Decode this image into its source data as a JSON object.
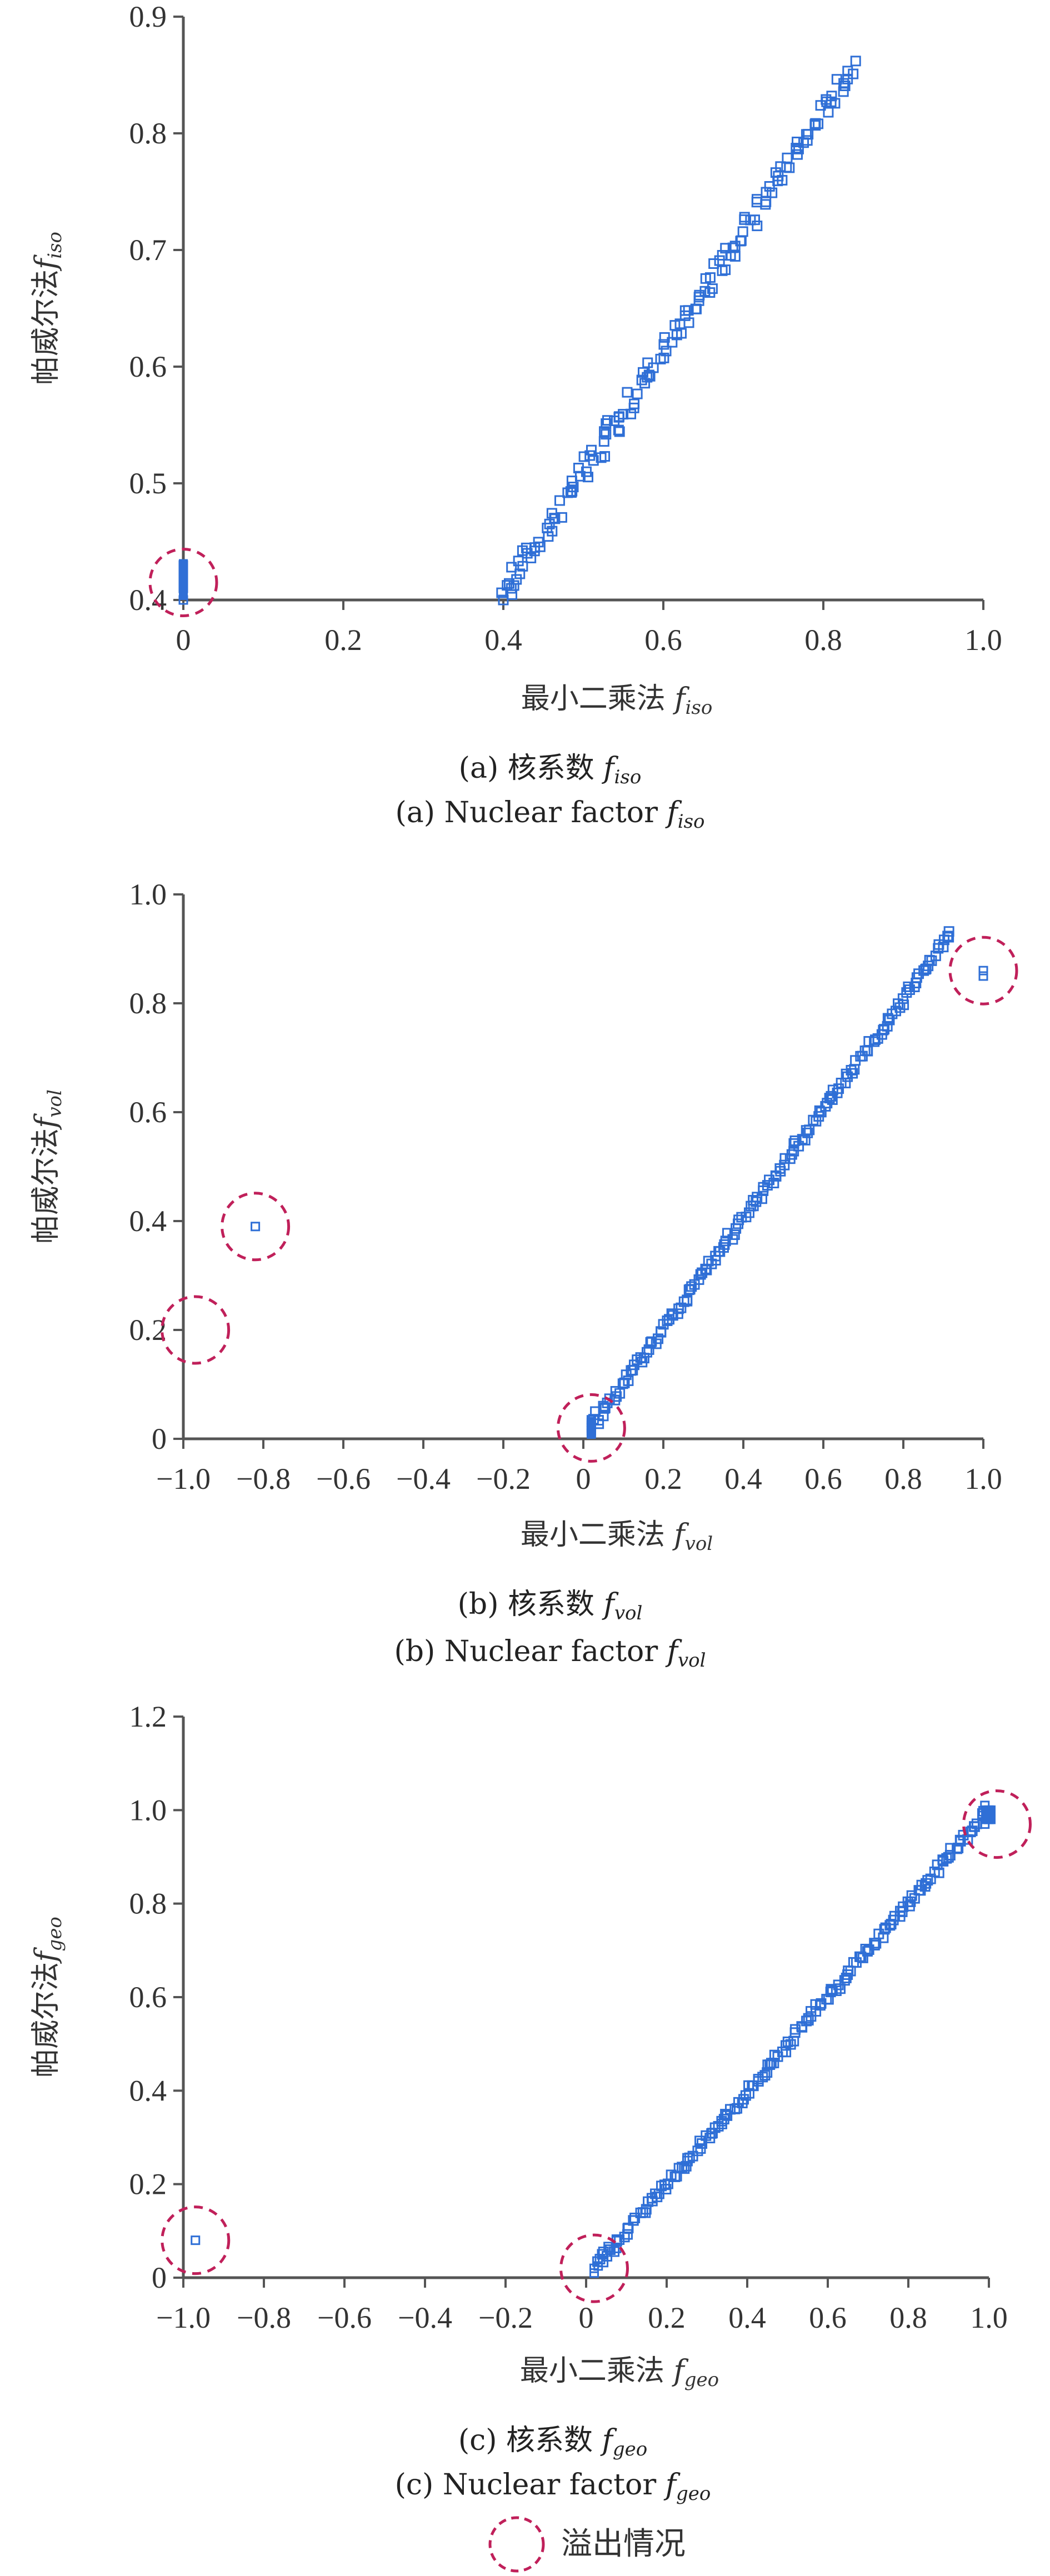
{
  "colors": {
    "marker": "#2f6fd6",
    "marker_fill": "#2f6fd6",
    "axis": "#555555",
    "overflow_circle": "#c0205a",
    "text": "#333333"
  },
  "legend": {
    "label": "溢出情况",
    "icon": "dashed-circle-icon"
  },
  "chart_data": [
    {
      "type": "scatter",
      "panel": "a",
      "xlabel": "最小二乘法",
      "xvar": "f",
      "xvar_sub": "iso",
      "ylabel": "帕威尔法",
      "yvar": "f",
      "yvar_sub": "iso",
      "caption_cn": "(a) 核系数",
      "caption_en": "(a) Nuclear factor",
      "caption_var": "f",
      "caption_sub": "iso",
      "xlim": [
        0,
        1.0
      ],
      "ylim": [
        0.4,
        0.9
      ],
      "xticks": [
        "0",
        "0.2",
        "0.4",
        "0.6",
        "0.8",
        "1.0"
      ],
      "yticks": [
        "0.4",
        "0.5",
        "0.6",
        "0.7",
        "0.8",
        "0.9"
      ],
      "xtick_values": [
        0,
        0.2,
        0.4,
        0.6,
        0.8,
        1.0
      ],
      "ytick_values": [
        0.4,
        0.5,
        0.6,
        0.7,
        0.8,
        0.9
      ],
      "trend": {
        "x_start": 0.4,
        "x_end": 0.84,
        "y_start": 0.405,
        "y_end": 0.86,
        "count": 150
      },
      "points": [
        [
          0.43,
          0.44
        ],
        [
          0.4,
          0.4
        ],
        [
          0.41,
          0.41
        ]
      ],
      "overflow_points": [
        [
          0.0,
          0.41
        ],
        [
          0.0,
          0.42
        ],
        [
          0.0,
          0.43
        ],
        [
          0.0,
          0.4
        ],
        [
          0.0,
          0.415
        ],
        [
          0.0,
          0.425
        ]
      ],
      "overflow_circles": [
        [
          0.0,
          0.415
        ]
      ]
    },
    {
      "type": "scatter",
      "panel": "b",
      "xlabel": "最小二乘法",
      "xvar": "f",
      "xvar_sub": "vol",
      "ylabel": "帕威尔法",
      "yvar": "f",
      "yvar_sub": "vol",
      "caption_cn": "(b) 核系数",
      "caption_en": "(b) Nuclear factor",
      "caption_var": "f",
      "caption_sub": "vol",
      "xlim": [
        -1.0,
        1.0
      ],
      "ylim": [
        0,
        1.0
      ],
      "xticks": [
        "−1.0",
        "−0.8",
        "−0.6",
        "−0.4",
        "−0.2",
        "0",
        "0.2",
        "0.4",
        "0.6",
        "0.8",
        "1.0"
      ],
      "yticks": [
        "0",
        "0.2",
        "0.4",
        "0.6",
        "0.8",
        "1.0"
      ],
      "xtick_values": [
        -1.0,
        -0.8,
        -0.6,
        -0.4,
        -0.2,
        0,
        0.2,
        0.4,
        0.6,
        0.8,
        1.0
      ],
      "ytick_values": [
        0,
        0.2,
        0.4,
        0.6,
        0.8,
        1.0
      ],
      "trend": {
        "x_start": 0.03,
        "x_end": 0.92,
        "y_start": 0.03,
        "y_end": 0.93,
        "count": 160
      },
      "points": [
        [
          0.03,
          0.05
        ],
        [
          0.05,
          0.06
        ]
      ],
      "overflow_points": [
        [
          -0.82,
          0.39
        ],
        [
          1.0,
          0.86
        ],
        [
          1.0,
          0.85
        ],
        [
          0.02,
          0.01
        ],
        [
          0.02,
          0.02
        ],
        [
          0.02,
          0.03
        ],
        [
          0.02,
          0.035
        ],
        [
          0.02,
          0.015
        ],
        [
          0.02,
          0.025
        ]
      ],
      "overflow_circles": [
        [
          -0.82,
          0.39
        ],
        [
          -0.97,
          0.2
        ],
        [
          0.02,
          0.02
        ],
        [
          1.0,
          0.86
        ]
      ]
    },
    {
      "type": "scatter",
      "panel": "c",
      "xlabel": "最小二乘法",
      "xvar": "f",
      "xvar_sub": "geo",
      "ylabel": "帕威尔法",
      "yvar": "f",
      "yvar_sub": "geo",
      "caption_cn": "(c) 核系数",
      "caption_en": "(c) Nuclear factor",
      "caption_var": "f",
      "caption_sub": "geo",
      "xlim": [
        -1.0,
        1.0
      ],
      "ylim": [
        0,
        1.2
      ],
      "xticks": [
        "−1.0",
        "−0.8",
        "−0.6",
        "−0.4",
        "−0.2",
        "0",
        "0.2",
        "0.4",
        "0.6",
        "0.8",
        "1.0"
      ],
      "yticks": [
        "0",
        "0.2",
        "0.4",
        "0.6",
        "0.8",
        "1.0",
        "1.2"
      ],
      "xtick_values": [
        -1.0,
        -0.8,
        -0.6,
        -0.4,
        -0.2,
        0,
        0.2,
        0.4,
        0.6,
        0.8,
        1.0
      ],
      "ytick_values": [
        0,
        0.2,
        0.4,
        0.6,
        0.8,
        1.0,
        1.2
      ],
      "trend": {
        "x_start": 0.03,
        "x_end": 0.99,
        "y_start": 0.03,
        "y_end": 0.99,
        "count": 170
      },
      "points": [
        [
          0.04,
          0.05
        ],
        [
          0.06,
          0.06
        ]
      ],
      "overflow_points": [
        [
          -0.97,
          0.08
        ],
        [
          0.02,
          0.01
        ],
        [
          0.02,
          0.02
        ],
        [
          0.03,
          0.025
        ],
        [
          1.0,
          0.98
        ],
        [
          1.0,
          1.0
        ],
        [
          1.0,
          0.99
        ],
        [
          0.99,
          1.01
        ],
        [
          0.99,
          0.97
        ],
        [
          1.0,
          0.985
        ]
      ],
      "overflow_circles": [
        [
          -0.97,
          0.08
        ],
        [
          0.02,
          0.02
        ],
        [
          1.02,
          0.97
        ]
      ]
    }
  ]
}
